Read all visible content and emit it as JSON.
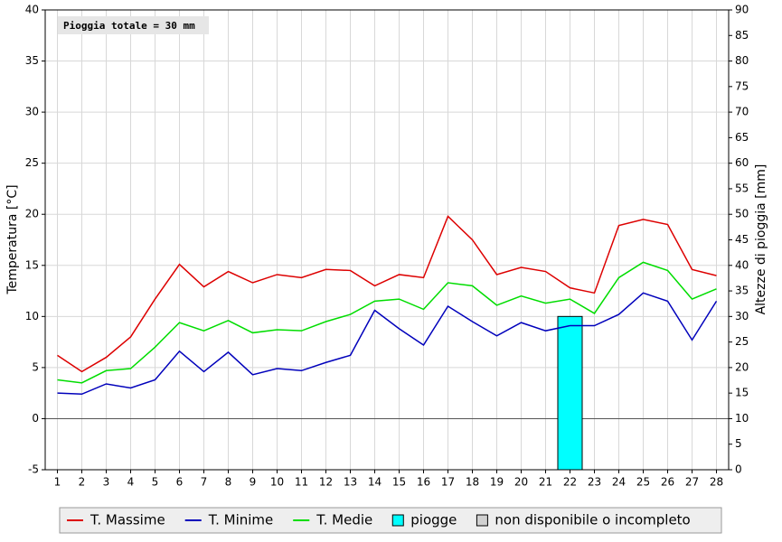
{
  "chart_data": {
    "type": "line",
    "annotation": "Pioggia totale = 30 mm",
    "ylabel": "Temperatura [°C]",
    "y2label": "Altezze di pioggia [mm]",
    "x": [
      1,
      2,
      3,
      4,
      5,
      6,
      7,
      8,
      9,
      10,
      11,
      12,
      13,
      14,
      15,
      16,
      17,
      18,
      19,
      20,
      21,
      22,
      23,
      24,
      25,
      26,
      27,
      28
    ],
    "xlim": [
      0.5,
      28.5
    ],
    "ylim": [
      -5,
      40
    ],
    "yticks": [
      -5,
      0,
      5,
      10,
      15,
      20,
      25,
      30,
      35,
      40
    ],
    "y2lim": [
      0,
      90
    ],
    "y2ticks": [
      0,
      5,
      10,
      15,
      20,
      25,
      30,
      35,
      40,
      45,
      50,
      55,
      60,
      65,
      70,
      75,
      80,
      85,
      90
    ],
    "grid": true,
    "series": [
      {
        "name": "T. Massime",
        "color": "#dd0000",
        "values": [
          6.2,
          4.6,
          6.0,
          8.0,
          11.7,
          15.1,
          12.9,
          14.4,
          13.3,
          14.1,
          13.8,
          14.6,
          14.5,
          13.0,
          14.1,
          13.8,
          19.8,
          17.5,
          14.1,
          14.8,
          14.4,
          12.8,
          12.3,
          18.9,
          19.5,
          19.0,
          14.6,
          14.0
        ]
      },
      {
        "name": "T. Minime",
        "color": "#0000bb",
        "values": [
          2.5,
          2.4,
          3.4,
          3.0,
          3.8,
          6.6,
          4.6,
          6.5,
          4.3,
          4.9,
          4.7,
          5.5,
          6.2,
          10.6,
          8.8,
          7.2,
          11.0,
          9.5,
          8.1,
          9.4,
          8.6,
          9.1,
          9.1,
          10.2,
          12.3,
          11.5,
          7.7,
          11.5
        ]
      },
      {
        "name": "T. Medie",
        "color": "#00dd00",
        "values": [
          3.8,
          3.5,
          4.7,
          4.9,
          7.0,
          9.4,
          8.6,
          9.6,
          8.4,
          8.7,
          8.6,
          9.5,
          10.2,
          11.5,
          11.7,
          10.7,
          13.3,
          13.0,
          11.1,
          12.0,
          11.3,
          11.7,
          10.3,
          13.8,
          15.3,
          14.5,
          11.7,
          12.7
        ]
      },
      {
        "name": "piogge",
        "type": "bar",
        "axis": "y2",
        "color": "#00ffff",
        "values": [
          0,
          0,
          0,
          0,
          0,
          0,
          0,
          0,
          0,
          0,
          0,
          0,
          0,
          0,
          0,
          0,
          0,
          0,
          0,
          0,
          0,
          30,
          0,
          0,
          0,
          0,
          0,
          0
        ]
      }
    ],
    "legend_extra": {
      "name": "non disponibile o incompleto",
      "color": "#d0d0d0"
    }
  }
}
